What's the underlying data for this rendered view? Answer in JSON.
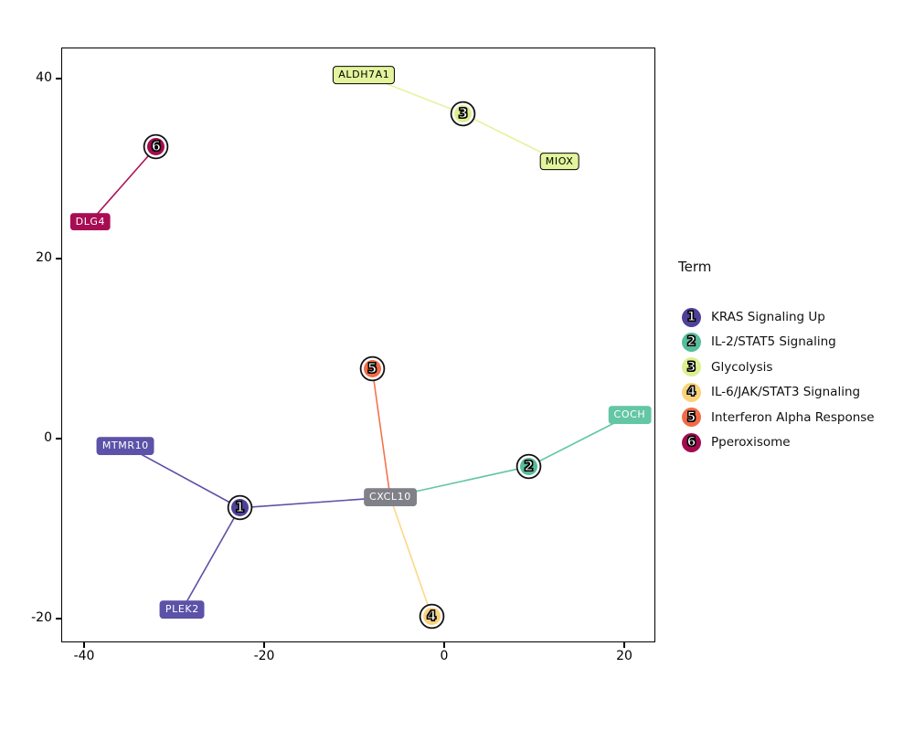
{
  "chart_data": {
    "type": "scatter",
    "subtype": "enrichment-network",
    "title": "",
    "xlabel": "",
    "ylabel": "",
    "grid": false,
    "xlim": [
      -42.4,
      23.5
    ],
    "ylim": [
      -22.8,
      43.7
    ],
    "xticks": [
      -40,
      -20,
      0,
      20
    ],
    "yticks": [
      -20,
      0,
      20,
      40
    ],
    "legend": {
      "title": "Term",
      "position": "right",
      "items": [
        {
          "number": "1",
          "label": "KRAS Signaling Up",
          "color": "#4F4098"
        },
        {
          "number": "2",
          "label": "IL-2/STAT5 Signaling",
          "color": "#55BD99"
        },
        {
          "number": "3",
          "label": "Glycolysis",
          "color": "#DCF08F"
        },
        {
          "number": "4",
          "label": "IL-6/JAK/STAT3 Signaling",
          "color": "#FAD279"
        },
        {
          "number": "5",
          "label": "Interferon Alpha Response",
          "color": "#F26B46"
        },
        {
          "number": "6",
          "label": "Pperoxisome",
          "color": "#A40A4F"
        }
      ]
    },
    "terms": [
      {
        "id": "t1",
        "number": "1",
        "label": "KRAS Signaling Up",
        "x": -22.7,
        "y": -7.7,
        "color": "#4F4098"
      },
      {
        "id": "t2",
        "number": "2",
        "label": "IL-2/STAT5 Signaling",
        "x": 9.4,
        "y": -3.1,
        "color": "#55BD99"
      },
      {
        "id": "t3",
        "number": "3",
        "label": "Glycolysis",
        "x": 2.1,
        "y": 36.1,
        "color": "#DCF08F"
      },
      {
        "id": "t4",
        "number": "4",
        "label": "IL-6/JAK/STAT3 Signaling",
        "x": -1.4,
        "y": -19.7,
        "color": "#FAD279"
      },
      {
        "id": "t5",
        "number": "5",
        "label": "Interferon Alpha Response",
        "x": -8.0,
        "y": 7.8,
        "color": "#F26B46"
      },
      {
        "id": "t6",
        "number": "6",
        "label": "Pperoxisome",
        "x": -32.0,
        "y": 32.4,
        "color": "#A40A4F"
      }
    ],
    "genes": [
      {
        "name": "DLG4",
        "x": -39.3,
        "y": 24.1,
        "fill": "#A80D53",
        "text_color": "#ffffff",
        "border_color": "transparent"
      },
      {
        "name": "ALDH7A1",
        "x": -8.9,
        "y": 40.4,
        "fill": "#E3F49C",
        "text_color": "#000000",
        "border_color": "#000000"
      },
      {
        "name": "MIOX",
        "x": 12.8,
        "y": 30.8,
        "fill": "#E3F49C",
        "text_color": "#000000",
        "border_color": "#000000"
      },
      {
        "name": "MTMR10",
        "x": -35.4,
        "y": -0.8,
        "fill": "#5C52A8",
        "text_color": "#ffffff",
        "border_color": "transparent"
      },
      {
        "name": "PLEK2",
        "x": -29.1,
        "y": -19.0,
        "fill": "#5C52A8",
        "text_color": "#ffffff",
        "border_color": "transparent"
      },
      {
        "name": "CXCL10",
        "x": -6.0,
        "y": -6.5,
        "fill": "#808089",
        "text_color": "#ffffff",
        "border_color": "transparent"
      },
      {
        "name": "COCH",
        "x": 20.6,
        "y": 2.6,
        "fill": "#63C6A4",
        "text_color": "#ffffff",
        "border_color": "transparent"
      }
    ],
    "edges": [
      {
        "from": "t6",
        "to": "DLG4",
        "color": "#AC1256"
      },
      {
        "from": "t3",
        "to": "ALDH7A1",
        "color": "#E3F49C"
      },
      {
        "from": "t3",
        "to": "MIOX",
        "color": "#E3F49C"
      },
      {
        "from": "t1",
        "to": "MTMR10",
        "color": "#5B51A5"
      },
      {
        "from": "t1",
        "to": "PLEK2",
        "color": "#5B51A5"
      },
      {
        "from": "t1",
        "to": "CXCL10",
        "color": "#5B51A5"
      },
      {
        "from": "t5",
        "to": "CXCL10",
        "color": "#F4744F"
      },
      {
        "from": "t4",
        "to": "CXCL10",
        "color": "#FBD985"
      },
      {
        "from": "t2",
        "to": "CXCL10",
        "color": "#63C6A4"
      },
      {
        "from": "t2",
        "to": "COCH",
        "color": "#63C6A4"
      }
    ]
  }
}
